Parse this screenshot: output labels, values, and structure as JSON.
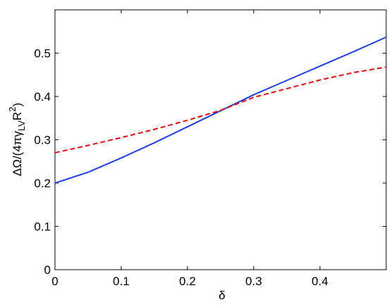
{
  "chart_data": {
    "type": "line",
    "x": [
      0,
      0.05,
      0.1,
      0.15,
      0.2,
      0.25,
      0.3,
      0.35,
      0.4,
      0.45,
      0.5
    ],
    "series": [
      {
        "color": "#1f3fe0",
        "style": "solid",
        "values": [
          0.2,
          0.225,
          0.258,
          0.293,
          0.33,
          0.367,
          0.404,
          0.437,
          0.47,
          0.503,
          0.537
        ]
      },
      {
        "color": "#e01010",
        "style": "dashed",
        "values": [
          0.27,
          0.287,
          0.305,
          0.324,
          0.345,
          0.368,
          0.398,
          0.418,
          0.438,
          0.455,
          0.468
        ]
      }
    ],
    "xlim": [
      0,
      0.5
    ],
    "xticks": [
      0,
      0.1,
      0.2,
      0.3,
      0.4
    ],
    "ylim": [
      0,
      0.6
    ],
    "yticks": [
      0,
      0.1,
      0.2,
      0.3,
      0.4,
      0.5
    ],
    "xlabel": "δ",
    "ylabel": [
      "ΔΩ/(4πγ",
      "LV",
      "R",
      "2",
      ")"
    ],
    "grid": false
  }
}
